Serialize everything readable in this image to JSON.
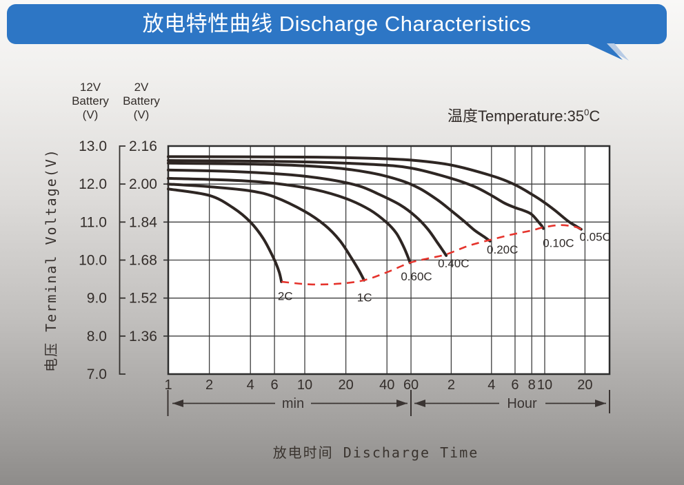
{
  "header": {
    "title": "放电特性曲线 Discharge Characteristics"
  },
  "temperature": {
    "prefix": "温度Temperature:35",
    "superscript": "0",
    "suffix": "C"
  },
  "chart_data": {
    "type": "line",
    "title": "放电特性曲线 Discharge Characteristics",
    "xlabel": "放电时间 Discharge Time",
    "ylabel": "电压 Terminal Voltage(V)",
    "annotation": "温度Temperature:35⁰C",
    "grid": true,
    "curve_color": "#2e2623",
    "x_axis": {
      "scale": "logarithmic-time",
      "minute_ticks": [
        1,
        2,
        4,
        6,
        10,
        20,
        40,
        60
      ],
      "hour_ticks": [
        2,
        4,
        6,
        8,
        10,
        20
      ],
      "segment_labels": [
        "min",
        "Hour"
      ],
      "range_minutes": [
        1,
        1860
      ]
    },
    "y_axis_12v": {
      "title_lines": [
        "12V",
        "Battery",
        "(V)"
      ],
      "tick_labels": [
        "13.0",
        "12.0",
        "11.0",
        "10.0",
        "9.0",
        "8.0",
        "7.0"
      ],
      "range": [
        7,
        13
      ]
    },
    "y_axis_2v": {
      "title_lines": [
        "2V",
        "Battery",
        "(V)"
      ],
      "tick_labels": [
        "2.16",
        "2.00",
        "1.84",
        "1.68",
        "1.52",
        "1.36"
      ]
    },
    "series": [
      {
        "name": "0.05C",
        "label_anchor": [
          1430,
          10.62
        ],
        "points": [
          [
            1,
            12.72
          ],
          [
            10,
            12.71
          ],
          [
            30,
            12.68
          ],
          [
            60,
            12.63
          ],
          [
            120,
            12.5
          ],
          [
            240,
            12.22
          ],
          [
            351,
            12.0
          ],
          [
            480,
            11.73
          ],
          [
            588,
            11.53
          ],
          [
            720,
            11.3
          ],
          [
            900,
            11.02
          ],
          [
            1020,
            10.9
          ],
          [
            1124,
            10.81
          ]
        ]
      },
      {
        "name": "0.10C",
        "label_anchor": [
          760,
          10.45
        ],
        "points": [
          [
            1,
            12.62
          ],
          [
            8,
            12.59
          ],
          [
            30,
            12.52
          ],
          [
            60,
            12.42
          ],
          [
            120,
            12.15
          ],
          [
            180,
            11.93
          ],
          [
            240,
            11.7
          ],
          [
            300,
            11.5
          ],
          [
            360,
            11.38
          ],
          [
            420,
            11.3
          ],
          [
            480,
            11.2
          ],
          [
            540,
            11.0
          ],
          [
            570,
            10.9
          ],
          [
            586,
            10.83
          ]
        ]
      },
      {
        "name": "0.20C",
        "label_anchor": [
          290,
          10.28
        ],
        "points": [
          [
            1,
            12.55
          ],
          [
            5,
            12.52
          ],
          [
            15,
            12.44
          ],
          [
            30,
            12.3
          ],
          [
            50,
            12.1
          ],
          [
            70,
            11.88
          ],
          [
            95,
            11.58
          ],
          [
            120,
            11.3
          ],
          [
            150,
            11.02
          ],
          [
            180,
            10.78
          ],
          [
            210,
            10.62
          ],
          [
            234,
            10.5
          ]
        ]
      },
      {
        "name": "0.40C",
        "label_anchor": [
          125,
          9.92
        ],
        "points": [
          [
            1,
            12.37
          ],
          [
            3,
            12.33
          ],
          [
            8,
            12.24
          ],
          [
            15,
            12.12
          ],
          [
            25,
            11.95
          ],
          [
            35,
            11.73
          ],
          [
            50,
            11.45
          ],
          [
            65,
            11.15
          ],
          [
            80,
            10.82
          ],
          [
            95,
            10.45
          ],
          [
            104,
            10.25
          ],
          [
            110,
            10.12
          ]
        ]
      },
      {
        "name": "0.60C",
        "label_anchor": [
          66,
          9.57
        ],
        "points": [
          [
            1,
            12.15
          ],
          [
            3,
            12.1
          ],
          [
            6,
            12.02
          ],
          [
            12,
            11.85
          ],
          [
            20,
            11.62
          ],
          [
            30,
            11.32
          ],
          [
            40,
            10.98
          ],
          [
            47,
            10.7
          ],
          [
            53,
            10.35
          ],
          [
            57,
            10.08
          ],
          [
            59,
            9.93
          ]
        ]
      },
      {
        "name": "1C",
        "label_anchor": [
          27.4,
          9.02
        ],
        "points": [
          [
            1,
            12.0
          ],
          [
            2,
            11.93
          ],
          [
            4,
            11.82
          ],
          [
            6,
            11.66
          ],
          [
            10,
            11.28
          ],
          [
            14,
            10.92
          ],
          [
            18,
            10.52
          ],
          [
            22,
            10.05
          ],
          [
            25,
            9.72
          ],
          [
            27.2,
            9.47
          ]
        ]
      },
      {
        "name": "2C",
        "label_anchor": [
          7.2,
          9.06
        ],
        "points": [
          [
            1,
            11.87
          ],
          [
            2,
            11.7
          ],
          [
            3,
            11.37
          ],
          [
            4,
            11.0
          ],
          [
            5,
            10.55
          ],
          [
            6,
            10.0
          ],
          [
            6.5,
            9.68
          ],
          [
            6.75,
            9.43
          ]
        ]
      }
    ],
    "envelope": {
      "name": "final-discharge-voltage",
      "style": "dashed",
      "color": "#e5332c",
      "points": [
        [
          6.75,
          9.43
        ],
        [
          11,
          9.36
        ],
        [
          18,
          9.38
        ],
        [
          27.2,
          9.47
        ],
        [
          40,
          9.68
        ],
        [
          59,
          9.93
        ],
        [
          80,
          10.04
        ],
        [
          110,
          10.15
        ],
        [
          160,
          10.37
        ],
        [
          234,
          10.53
        ],
        [
          340,
          10.67
        ],
        [
          480,
          10.78
        ],
        [
          586,
          10.86
        ],
        [
          780,
          10.92
        ],
        [
          1000,
          10.88
        ],
        [
          1124,
          10.81
        ]
      ]
    }
  }
}
